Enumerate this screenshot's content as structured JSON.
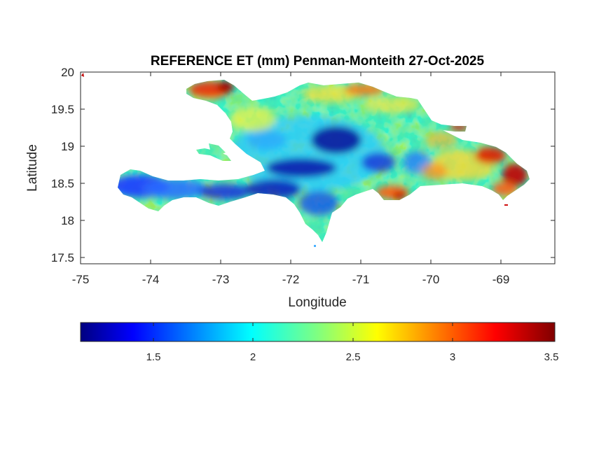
{
  "figure": {
    "title": "REFERENCE ET (mm) Penman-Monteith 27-Oct-2025"
  },
  "axes": {
    "xlabel": "Longitude",
    "ylabel": "Latitude",
    "xlim": [
      -75,
      -68.23
    ],
    "ylim": [
      17.37,
      20
    ],
    "xticks": [
      "-75",
      "-74",
      "-73",
      "-72",
      "-71",
      "-70",
      "-69"
    ],
    "yticks": [
      "20",
      "19.5",
      "19",
      "18.5",
      "18",
      "17.5"
    ]
  },
  "colorbar": {
    "colormap": "jet",
    "range": [
      1.14,
      3.5
    ],
    "ticks": [
      "1.5",
      "2",
      "2.5",
      "3",
      "3.5"
    ],
    "placement": "bottom-horizontal"
  },
  "map": {
    "region": "Hispaniola",
    "variable": "reference evapotranspiration",
    "units": "mm"
  }
}
